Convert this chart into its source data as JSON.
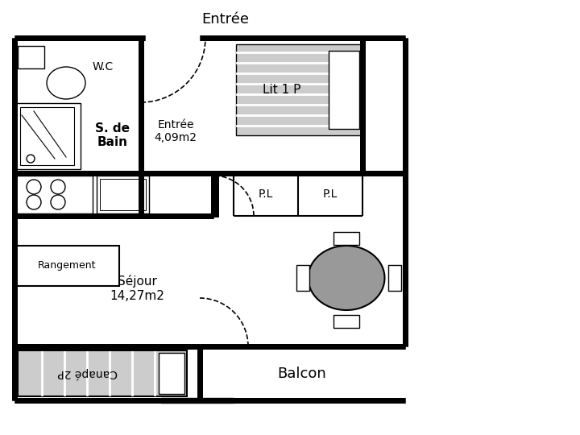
{
  "bg": "#ffffff",
  "wall": "#000000",
  "gray_light": "#cccccc",
  "gray_mid": "#999999",
  "title": "Entrée",
  "wc": "W.C",
  "sdb": "S. de\nBain",
  "entree": "Entrée\n4,09m2",
  "sejour": "Séjour\n14,27m2",
  "rangement": "Rangement",
  "lit": "Lit 1 P",
  "pl": "P.L",
  "balcon": "Balcon",
  "canape": "Canapé 2P",
  "LW": 5,
  "TLW": 1.5
}
